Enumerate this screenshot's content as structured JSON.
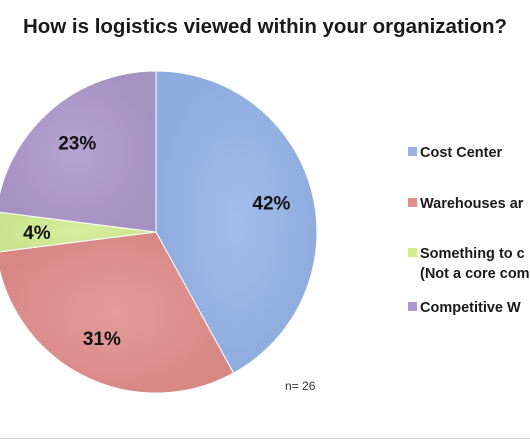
{
  "chart_data": {
    "type": "pie",
    "title": "How is logistics viewed within your organization?",
    "categories": [
      "Cost Center",
      "Warehouses ar",
      "Something to c\n(Not a core com",
      "Competitive W"
    ],
    "values": [
      42,
      31,
      4,
      23
    ],
    "data_labels": [
      "42%",
      "31%",
      "4%",
      "23%"
    ],
    "colors": [
      "#95b3e8",
      "#e08e8b",
      "#d3ec93",
      "#ad97cb"
    ],
    "legend_position": "right",
    "annotation": "n= 26"
  }
}
